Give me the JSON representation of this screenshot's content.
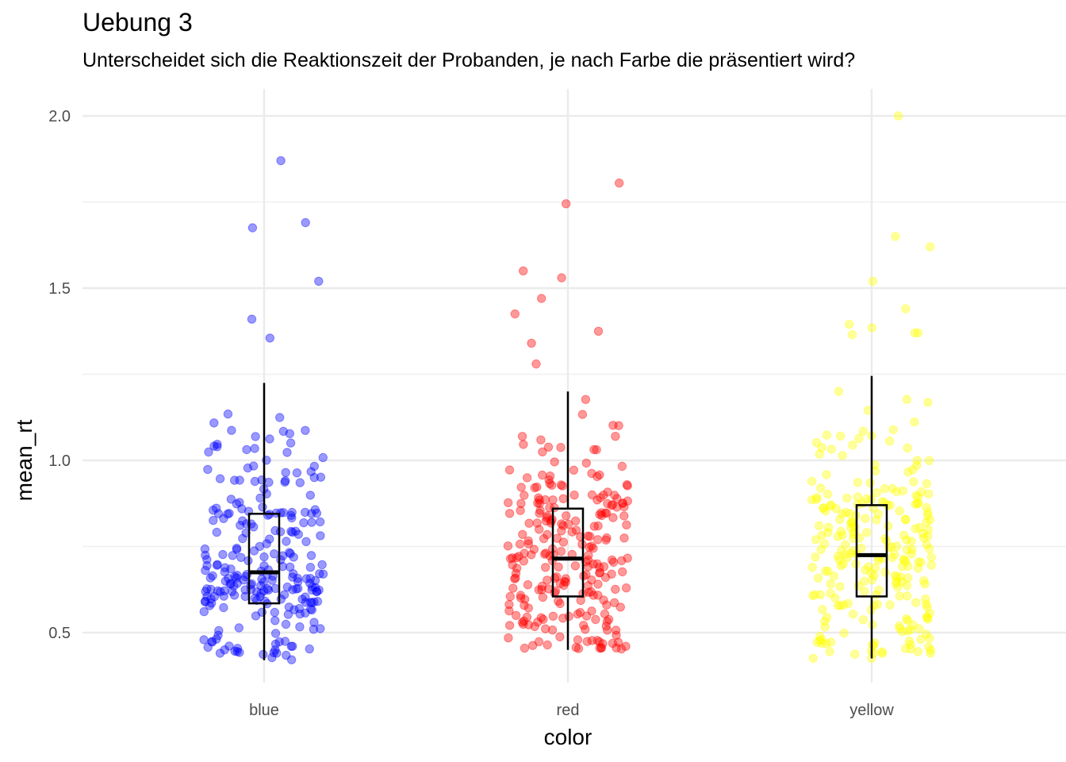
{
  "chart_data": {
    "type": "boxplot+jitter",
    "title": "Uebung 3",
    "subtitle": "Unterscheidet sich die Reaktionszeit der Probanden, je nach Farbe die präsentiert wird?",
    "xlabel": "color",
    "ylabel": "mean_rt",
    "categories": [
      "blue",
      "red",
      "yellow"
    ],
    "y_ticks": [
      0.5,
      1.0,
      1.5,
      2.0
    ],
    "y_tick_labels": [
      "0.5",
      "1.0",
      "1.5",
      "2.0"
    ],
    "ylim": [
      0.35,
      2.07
    ],
    "grid": true,
    "point_alpha": 0.4,
    "colors": {
      "blue": "#0000ff",
      "red": "#ff0000",
      "yellow": "#ffff00",
      "box": "#000000",
      "grid": "#ebebeb"
    },
    "boxes": [
      {
        "category": "blue",
        "whisker_low": 0.42,
        "q1": 0.585,
        "median": 0.675,
        "q3": 0.845,
        "whisker_high": 1.225
      },
      {
        "category": "red",
        "whisker_low": 0.45,
        "q1": 0.605,
        "median": 0.715,
        "q3": 0.86,
        "whisker_high": 1.2
      },
      {
        "category": "yellow",
        "whisker_low": 0.425,
        "q1": 0.605,
        "median": 0.725,
        "q3": 0.87,
        "whisker_high": 1.245
      }
    ],
    "outliers": [
      {
        "category": "blue",
        "values": [
          1.87,
          1.69,
          1.675,
          1.52,
          1.41,
          1.355
        ]
      },
      {
        "category": "red",
        "values": [
          1.805,
          1.745,
          1.55,
          1.53,
          1.47,
          1.425,
          1.375,
          1.34,
          1.28
        ]
      },
      {
        "category": "yellow",
        "values": [
          2.0,
          1.65,
          1.62,
          1.52,
          1.44,
          1.395,
          1.385,
          1.37,
          1.37,
          1.365
        ]
      }
    ],
    "points_per_category": 250
  }
}
